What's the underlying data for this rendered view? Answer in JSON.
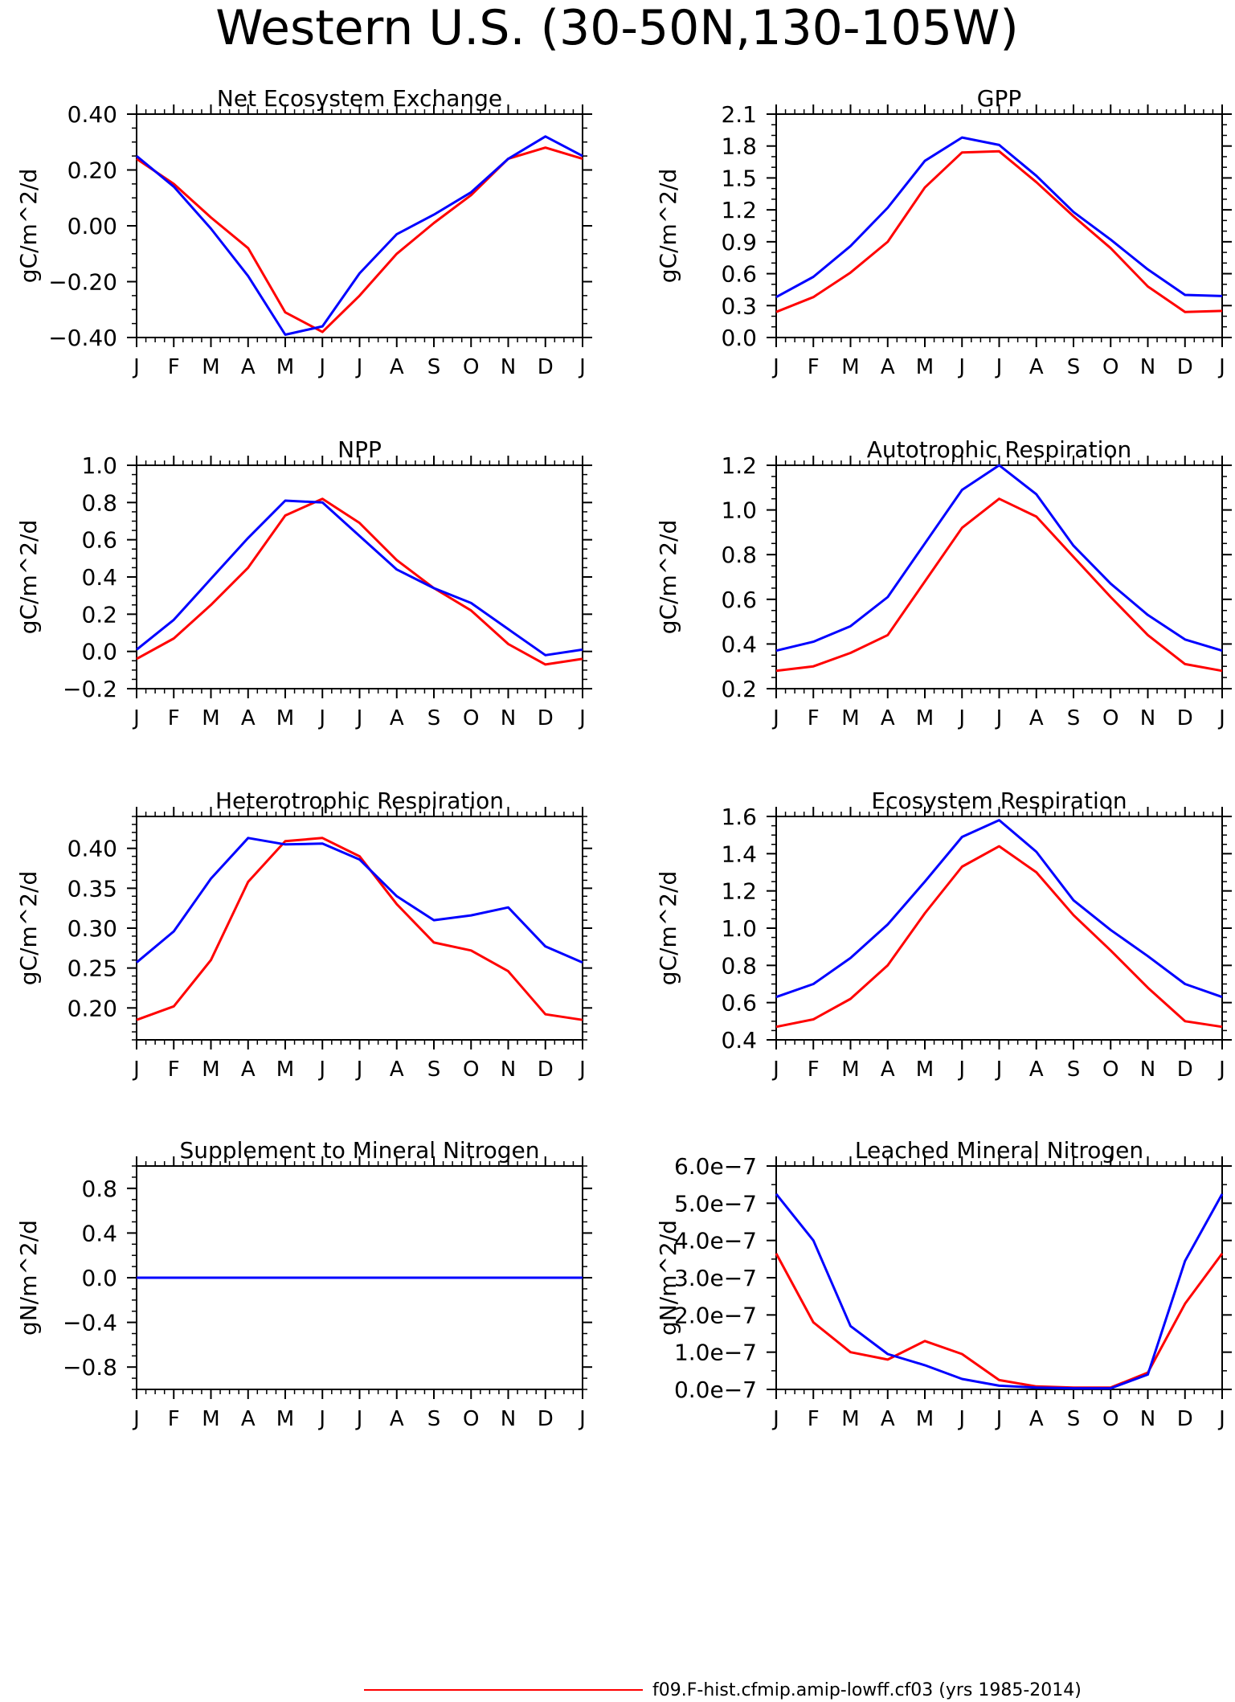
{
  "page_title": "Western U.S. (30-50N,130-105W)",
  "month_labels": [
    "J",
    "F",
    "M",
    "A",
    "M",
    "J",
    "J",
    "A",
    "S",
    "O",
    "N",
    "D",
    "J"
  ],
  "legend": {
    "label": "f09.F-hist.cfmip.amip-lowff.cf03 (yrs 1985-2014)",
    "color": "#ff0000"
  },
  "series_colors": {
    "red": "#ff0000",
    "blue": "#0000ff"
  },
  "chart_data": [
    {
      "type": "line",
      "title": "Net Ecosystem Exchange",
      "ylabel": "gC/m^2/d",
      "ylim": [
        -0.4,
        0.4
      ],
      "yticks": [
        -0.4,
        -0.2,
        0.0,
        0.2,
        0.4
      ],
      "ytick_labels": [
        "−0.40",
        "−0.20",
        "0.00",
        "0.20",
        "0.40"
      ],
      "minor_step": 0.05,
      "x": [
        "J",
        "F",
        "M",
        "A",
        "M",
        "J",
        "J",
        "A",
        "S",
        "O",
        "N",
        "D",
        "J"
      ],
      "series": [
        {
          "color": "#ff0000",
          "values": [
            0.24,
            0.15,
            0.03,
            -0.08,
            -0.31,
            -0.38,
            -0.25,
            -0.1,
            0.01,
            0.11,
            0.24,
            0.28,
            0.24
          ]
        },
        {
          "color": "#0000ff",
          "values": [
            0.25,
            0.14,
            -0.01,
            -0.18,
            -0.39,
            -0.36,
            -0.17,
            -0.03,
            0.04,
            0.12,
            0.24,
            0.32,
            0.25
          ]
        }
      ]
    },
    {
      "type": "line",
      "title": "GPP",
      "ylabel": "gC/m^2/d",
      "ylim": [
        0.0,
        2.1
      ],
      "yticks": [
        0.0,
        0.3,
        0.6,
        0.9,
        1.2,
        1.5,
        1.8,
        2.1
      ],
      "ytick_labels": [
        "0.0",
        "0.3",
        "0.6",
        "0.9",
        "1.2",
        "1.5",
        "1.8",
        "2.1"
      ],
      "minor_step": 0.1,
      "x": [
        "J",
        "F",
        "M",
        "A",
        "M",
        "J",
        "J",
        "A",
        "S",
        "O",
        "N",
        "D",
        "J"
      ],
      "series": [
        {
          "color": "#ff0000",
          "values": [
            0.24,
            0.38,
            0.61,
            0.9,
            1.41,
            1.74,
            1.75,
            1.46,
            1.14,
            0.84,
            0.48,
            0.24,
            0.25
          ]
        },
        {
          "color": "#0000ff",
          "values": [
            0.38,
            0.57,
            0.86,
            1.22,
            1.66,
            1.88,
            1.81,
            1.52,
            1.18,
            0.92,
            0.64,
            0.4,
            0.39
          ]
        }
      ]
    },
    {
      "type": "line",
      "title": "NPP",
      "ylabel": "gC/m^2/d",
      "ylim": [
        -0.2,
        1.0
      ],
      "yticks": [
        -0.2,
        0.0,
        0.2,
        0.4,
        0.6,
        0.8,
        1.0
      ],
      "ytick_labels": [
        "−0.2",
        "0.0",
        "0.2",
        "0.4",
        "0.6",
        "0.8",
        "1.0"
      ],
      "minor_step": 0.05,
      "x": [
        "J",
        "F",
        "M",
        "A",
        "M",
        "J",
        "J",
        "A",
        "S",
        "O",
        "N",
        "D",
        "J"
      ],
      "series": [
        {
          "color": "#ff0000",
          "values": [
            -0.04,
            0.07,
            0.25,
            0.45,
            0.73,
            0.82,
            0.69,
            0.49,
            0.34,
            0.22,
            0.04,
            -0.07,
            -0.04
          ]
        },
        {
          "color": "#0000ff",
          "values": [
            0.01,
            0.17,
            0.39,
            0.61,
            0.81,
            0.8,
            0.62,
            0.44,
            0.34,
            0.26,
            0.12,
            -0.02,
            0.01
          ]
        }
      ]
    },
    {
      "type": "line",
      "title": "Autotrophic Respiration",
      "ylabel": "gC/m^2/d",
      "ylim": [
        0.2,
        1.2
      ],
      "yticks": [
        0.2,
        0.4,
        0.6,
        0.8,
        1.0,
        1.2
      ],
      "ytick_labels": [
        "0.2",
        "0.4",
        "0.6",
        "0.8",
        "1.0",
        "1.2"
      ],
      "minor_step": 0.05,
      "x": [
        "J",
        "F",
        "M",
        "A",
        "M",
        "J",
        "J",
        "A",
        "S",
        "O",
        "N",
        "D",
        "J"
      ],
      "series": [
        {
          "color": "#ff0000",
          "values": [
            0.28,
            0.3,
            0.36,
            0.44,
            0.68,
            0.92,
            1.05,
            0.97,
            0.79,
            0.61,
            0.44,
            0.31,
            0.28
          ]
        },
        {
          "color": "#0000ff",
          "values": [
            0.37,
            0.41,
            0.48,
            0.61,
            0.85,
            1.09,
            1.2,
            1.07,
            0.84,
            0.67,
            0.53,
            0.42,
            0.37
          ]
        }
      ]
    },
    {
      "type": "line",
      "title": "Heterotrophic Respiration",
      "ylabel": "gC/m^2/d",
      "ylim": [
        0.16,
        0.44
      ],
      "yticks": [
        0.2,
        0.25,
        0.3,
        0.35,
        0.4
      ],
      "ytick_labels": [
        "0.20",
        "0.25",
        "0.30",
        "0.35",
        "0.40"
      ],
      "minor_step": 0.01,
      "x": [
        "J",
        "F",
        "M",
        "A",
        "M",
        "J",
        "J",
        "A",
        "S",
        "O",
        "N",
        "D",
        "J"
      ],
      "series": [
        {
          "color": "#ff0000",
          "values": [
            0.185,
            0.202,
            0.26,
            0.358,
            0.409,
            0.413,
            0.39,
            0.33,
            0.282,
            0.272,
            0.246,
            0.192,
            0.185
          ]
        },
        {
          "color": "#0000ff",
          "values": [
            0.257,
            0.296,
            0.362,
            0.413,
            0.405,
            0.406,
            0.386,
            0.34,
            0.31,
            0.316,
            0.326,
            0.277,
            0.257
          ]
        }
      ]
    },
    {
      "type": "line",
      "title": "Ecosystem Respiration",
      "ylabel": "gC/m^2/d",
      "ylim": [
        0.4,
        1.6
      ],
      "yticks": [
        0.4,
        0.6,
        0.8,
        1.0,
        1.2,
        1.4,
        1.6
      ],
      "ytick_labels": [
        "0.4",
        "0.6",
        "0.8",
        "1.0",
        "1.2",
        "1.4",
        "1.6"
      ],
      "minor_step": 0.05,
      "x": [
        "J",
        "F",
        "M",
        "A",
        "M",
        "J",
        "J",
        "A",
        "S",
        "O",
        "N",
        "D",
        "J"
      ],
      "series": [
        {
          "color": "#ff0000",
          "values": [
            0.47,
            0.51,
            0.62,
            0.8,
            1.08,
            1.33,
            1.44,
            1.3,
            1.07,
            0.88,
            0.68,
            0.5,
            0.47
          ]
        },
        {
          "color": "#0000ff",
          "values": [
            0.63,
            0.7,
            0.84,
            1.02,
            1.25,
            1.49,
            1.58,
            1.41,
            1.15,
            0.99,
            0.85,
            0.7,
            0.63
          ]
        }
      ]
    },
    {
      "type": "line",
      "title": "Supplement to Mineral Nitrogen",
      "ylabel": "gN/m^2/d",
      "ylim": [
        -1.0,
        1.0
      ],
      "yticks": [
        -0.8,
        -0.4,
        0.0,
        0.4,
        0.8
      ],
      "ytick_labels": [
        "−0.8",
        "−0.4",
        "0.0",
        "0.4",
        "0.8"
      ],
      "minor_step": 0.1,
      "x": [
        "J",
        "F",
        "M",
        "A",
        "M",
        "J",
        "J",
        "A",
        "S",
        "O",
        "N",
        "D",
        "J"
      ],
      "series": [
        {
          "color": "#ff0000",
          "values": [
            0,
            0,
            0,
            0,
            0,
            0,
            0,
            0,
            0,
            0,
            0,
            0,
            0
          ]
        },
        {
          "color": "#0000ff",
          "values": [
            0,
            0,
            0,
            0,
            0,
            0,
            0,
            0,
            0,
            0,
            0,
            0,
            0
          ]
        }
      ]
    },
    {
      "type": "line",
      "title": "Leached Mineral Nitrogen",
      "ylabel": "gN/m^2/d",
      "ylim": [
        0.0,
        6e-07
      ],
      "yticks": [
        0.0,
        1e-07,
        2e-07,
        3e-07,
        4e-07,
        5e-07,
        6e-07
      ],
      "ytick_labels": [
        "0.0e−7",
        "1.0e−7",
        "2.0e−7",
        "3.0e−7",
        "4.0e−7",
        "5.0e−7",
        "6.0e−7"
      ],
      "minor_step": 5e-08,
      "x": [
        "J",
        "F",
        "M",
        "A",
        "M",
        "J",
        "J",
        "A",
        "S",
        "O",
        "N",
        "D",
        "J"
      ],
      "series": [
        {
          "color": "#ff0000",
          "values": [
            3.65e-07,
            1.8e-07,
            1e-07,
            8e-08,
            1.3e-07,
            9.5e-08,
            2.5e-08,
            8e-09,
            5e-09,
            5e-09,
            4.5e-08,
            2.3e-07,
            3.65e-07
          ]
        },
        {
          "color": "#0000ff",
          "values": [
            5.25e-07,
            4e-07,
            1.7e-07,
            9.5e-08,
            6.5e-08,
            2.8e-08,
            1e-08,
            5e-09,
            3e-09,
            3e-09,
            4e-08,
            3.45e-07,
            5.25e-07
          ]
        }
      ]
    }
  ]
}
